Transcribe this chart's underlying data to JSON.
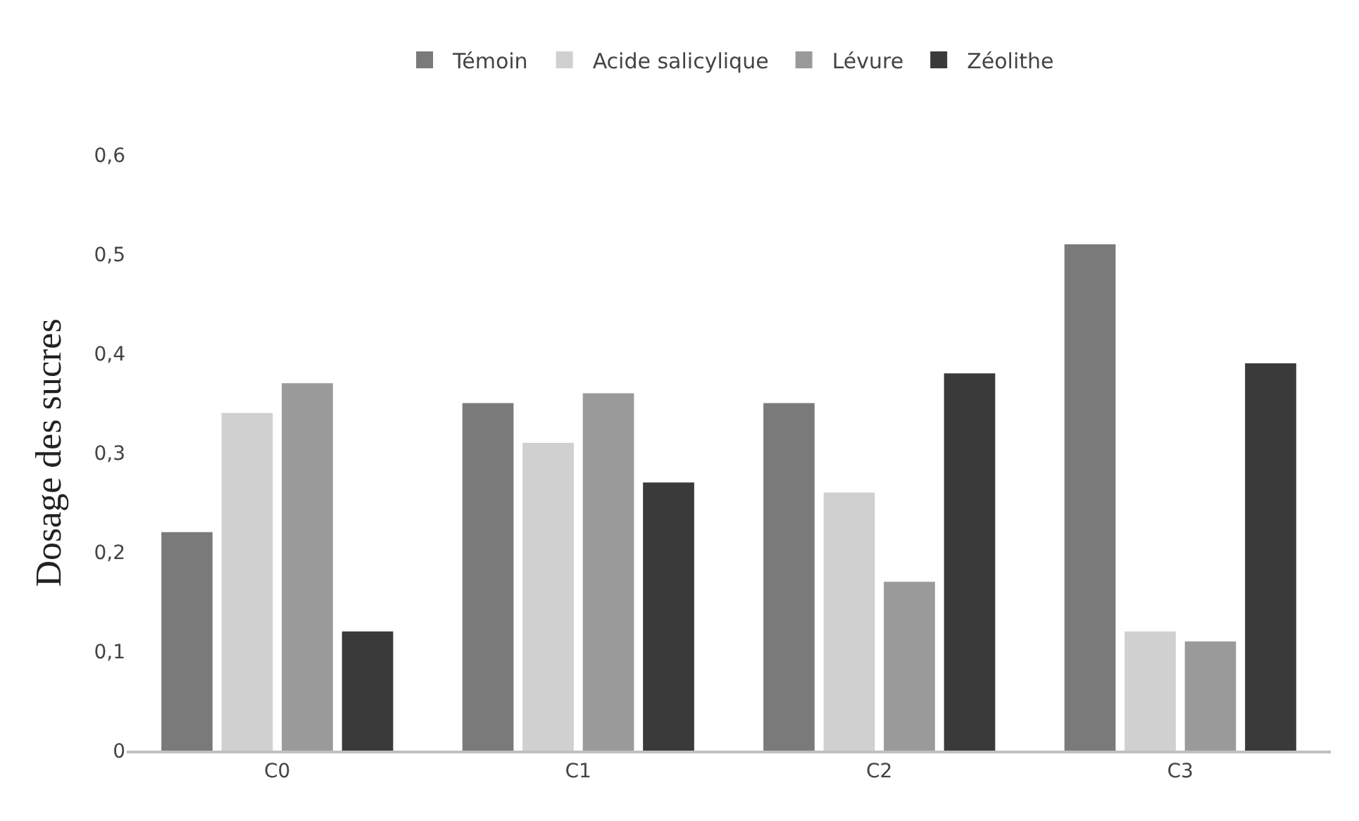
{
  "chart_data": {
    "type": "bar",
    "ylabel": "Dosage des sucres",
    "categories": [
      "C0",
      "C1",
      "C2",
      "C3"
    ],
    "series": [
      {
        "name": "Témoin",
        "color": "#7a7a7a",
        "values": [
          0.22,
          0.35,
          0.35,
          0.51
        ]
      },
      {
        "name": "Acide salicylique",
        "color": "#d0d0d0",
        "values": [
          0.34,
          0.31,
          0.26,
          0.12
        ]
      },
      {
        "name": "Lévure",
        "color": "#9a9a9a",
        "values": [
          0.37,
          0.36,
          0.17,
          0.11
        ]
      },
      {
        "name": "Zéolithe",
        "color": "#3a3a3a",
        "values": [
          0.12,
          0.27,
          0.38,
          0.39
        ]
      }
    ],
    "ylim": [
      0,
      0.6
    ],
    "yticks": [
      {
        "value": 0,
        "label": "0"
      },
      {
        "value": 0.1,
        "label": "0,1"
      },
      {
        "value": 0.2,
        "label": "0,2"
      },
      {
        "value": 0.3,
        "label": "0,3"
      },
      {
        "value": 0.4,
        "label": "0,4"
      },
      {
        "value": 0.5,
        "label": "0,5"
      },
      {
        "value": 0.6,
        "label": "0,6"
      }
    ],
    "legend": "top"
  }
}
